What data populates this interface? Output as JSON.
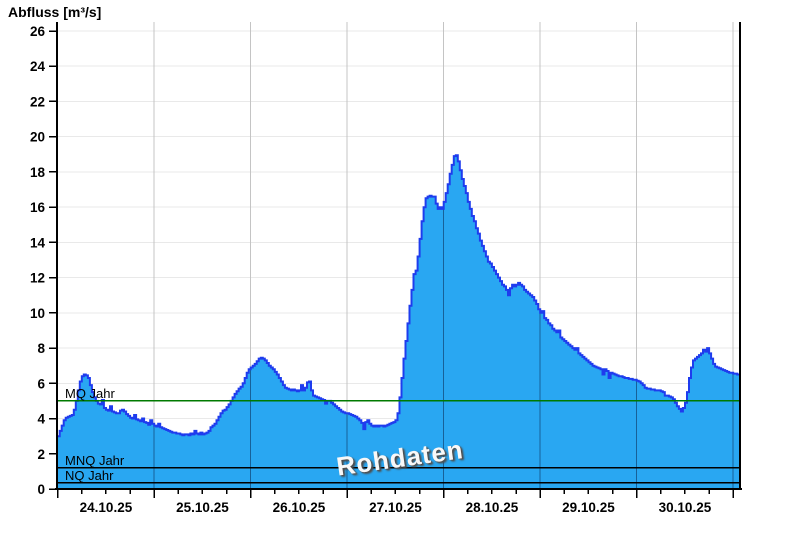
{
  "chart_data": {
    "type": "area",
    "title": "Abfluss [m³/s]",
    "watermark": "Rohdaten",
    "x_tick_labels": [
      "24.10.25",
      "25.10.25",
      "26.10.25",
      "27.10.25",
      "28.10.25",
      "29.10.25",
      "30.10.25"
    ],
    "x_axis": {
      "start_hours": 0,
      "end_hours": 169.7,
      "major_tick_hours": 24,
      "minor_tick_hours": 6
    },
    "y_axis": {
      "min": 0,
      "max": 26,
      "tick_step": 2
    },
    "reference_lines": [
      {
        "label": "MQ Jahr",
        "value": 5.0,
        "color": "#007a00"
      },
      {
        "label": "MNQ Jahr",
        "value": 1.2,
        "color": "#000000"
      },
      {
        "label": "NQ Jahr",
        "value": 0.35,
        "color": "#000000"
      }
    ],
    "series": {
      "name": "Abfluss Rohdaten",
      "t_start_hours": 0,
      "dt_hours": 0.5,
      "values": [
        3.0,
        3.3,
        3.6,
        3.9,
        4.05,
        4.1,
        4.15,
        4.2,
        4.5,
        5.0,
        5.6,
        6.1,
        6.4,
        6.5,
        6.45,
        6.3,
        5.9,
        5.5,
        5.2,
        5.0,
        4.85,
        4.8,
        5.05,
        4.6,
        4.5,
        4.45,
        4.7,
        4.4,
        4.35,
        4.3,
        4.3,
        4.45,
        4.5,
        4.4,
        4.25,
        4.15,
        4.05,
        4.0,
        4.2,
        3.95,
        3.9,
        3.85,
        4.0,
        3.8,
        3.75,
        3.65,
        3.9,
        3.7,
        3.6,
        3.55,
        3.7,
        3.5,
        3.45,
        3.4,
        3.35,
        3.3,
        3.25,
        3.2,
        3.2,
        3.15,
        3.15,
        3.1,
        3.05,
        3.1,
        3.1,
        3.05,
        3.15,
        3.1,
        3.3,
        3.15,
        3.1,
        3.2,
        3.1,
        3.15,
        3.2,
        3.3,
        3.5,
        3.6,
        3.7,
        3.9,
        4.1,
        4.3,
        4.45,
        4.5,
        4.65,
        4.8,
        5.0,
        5.2,
        5.4,
        5.55,
        5.7,
        5.8,
        6.0,
        6.3,
        6.6,
        6.8,
        6.9,
        7.0,
        7.1,
        7.25,
        7.4,
        7.45,
        7.4,
        7.3,
        7.15,
        7.0,
        6.9,
        6.8,
        6.65,
        6.5,
        6.3,
        6.1,
        5.9,
        5.75,
        5.7,
        5.65,
        5.6,
        5.65,
        5.6,
        5.55,
        5.6,
        5.9,
        5.6,
        5.75,
        6.05,
        6.1,
        5.6,
        5.3,
        5.25,
        5.2,
        5.15,
        5.1,
        5.05,
        4.85,
        5.0,
        5.0,
        4.9,
        4.8,
        4.7,
        4.6,
        4.5,
        4.4,
        4.35,
        4.3,
        4.3,
        4.25,
        4.2,
        4.15,
        4.1,
        4.0,
        3.9,
        3.75,
        3.4,
        3.8,
        3.9,
        3.7,
        3.6,
        3.55,
        3.6,
        3.55,
        3.6,
        3.6,
        3.55,
        3.6,
        3.65,
        3.7,
        3.75,
        3.8,
        3.9,
        4.3,
        5.2,
        6.3,
        7.4,
        8.4,
        9.4,
        10.4,
        11.3,
        12.2,
        12.4,
        13.2,
        14.2,
        15.2,
        16.0,
        16.5,
        16.6,
        16.65,
        16.6,
        16.6,
        16.2,
        15.9,
        16.0,
        15.9,
        16.3,
        16.8,
        17.3,
        17.9,
        18.4,
        18.9,
        18.95,
        18.6,
        18.1,
        17.6,
        17.2,
        16.8,
        16.3,
        15.9,
        15.5,
        15.2,
        14.8,
        14.5,
        14.1,
        13.8,
        13.5,
        13.2,
        12.9,
        12.8,
        12.6,
        12.4,
        12.2,
        12.0,
        11.8,
        11.6,
        11.5,
        11.3,
        11.0,
        11.4,
        11.6,
        11.5,
        11.6,
        11.7,
        11.6,
        11.5,
        11.3,
        11.2,
        11.1,
        11.0,
        10.9,
        10.7,
        10.5,
        10.2,
        10.0,
        10.1,
        9.7,
        9.6,
        9.4,
        9.3,
        9.1,
        9.0,
        8.9,
        9.0,
        8.6,
        8.5,
        8.4,
        8.3,
        8.2,
        8.1,
        8.0,
        7.9,
        8.0,
        7.7,
        7.6,
        7.5,
        7.4,
        7.3,
        7.2,
        7.1,
        7.0,
        6.95,
        6.9,
        6.85,
        6.8,
        6.5,
        6.8,
        6.7,
        6.3,
        6.6,
        6.55,
        6.5,
        6.45,
        6.4,
        6.4,
        6.35,
        6.3,
        6.3,
        6.25,
        6.25,
        6.2,
        6.2,
        6.15,
        6.1,
        6.0,
        5.9,
        5.75,
        5.7,
        5.7,
        5.65,
        5.65,
        5.6,
        5.6,
        5.6,
        5.55,
        5.5,
        5.3,
        5.3,
        5.25,
        5.2,
        5.1,
        4.9,
        4.7,
        4.55,
        4.4,
        4.6,
        4.9,
        5.5,
        6.3,
        6.9,
        7.3,
        7.4,
        7.5,
        7.6,
        7.7,
        7.9,
        7.8,
        8.0,
        7.7,
        7.4,
        7.1,
        6.95,
        6.9,
        6.85,
        6.8,
        6.75,
        6.7,
        6.65,
        6.6,
        6.6,
        6.55,
        6.55,
        6.5,
        6.5
      ]
    },
    "colors": {
      "area_fill": "#29A7F2",
      "area_stroke": "#1E3CEE",
      "h_grid": "#e9e9e9",
      "day_grid_light": "#c4c4c4",
      "day_grid_on_fill": "rgba(0,0,30,0.42)",
      "axis": "#000000",
      "background": "#ffffff"
    }
  }
}
